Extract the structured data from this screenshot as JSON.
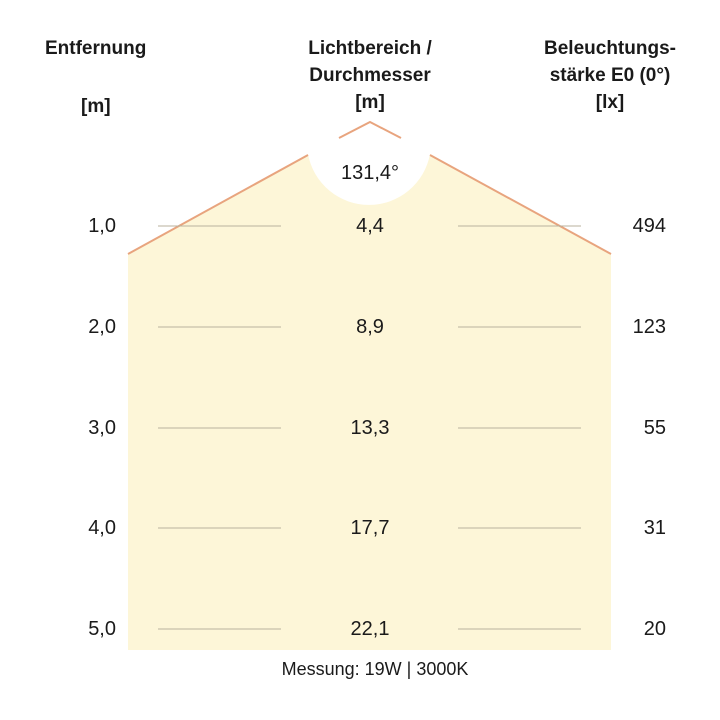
{
  "headers": {
    "distance": {
      "line1": "Entfernung",
      "unit": "[m]"
    },
    "diameter": {
      "line1": "Lichtbereich /",
      "line2": "Durchmesser",
      "unit": "[m]"
    },
    "illuminance": {
      "line1": "Beleuchtungs-",
      "line2": "stärke E0 (0°)",
      "unit": "[lx]"
    }
  },
  "beam_angle": "131,4°",
  "rows": [
    {
      "distance": "1,0",
      "diameter": "4,4",
      "illuminance": "494"
    },
    {
      "distance": "2,0",
      "diameter": "8,9",
      "illuminance": "123"
    },
    {
      "distance": "3,0",
      "diameter": "13,3",
      "illuminance": "55"
    },
    {
      "distance": "4,0",
      "diameter": "17,7",
      "illuminance": "31"
    },
    {
      "distance": "5,0",
      "diameter": "22,1",
      "illuminance": "20"
    }
  ],
  "footer": "Messung: 19W | 3000K",
  "colors": {
    "beam_fill": "#fdf6d8",
    "beam_edge": "#e8a47e",
    "row_line": "#b9b29e"
  }
}
